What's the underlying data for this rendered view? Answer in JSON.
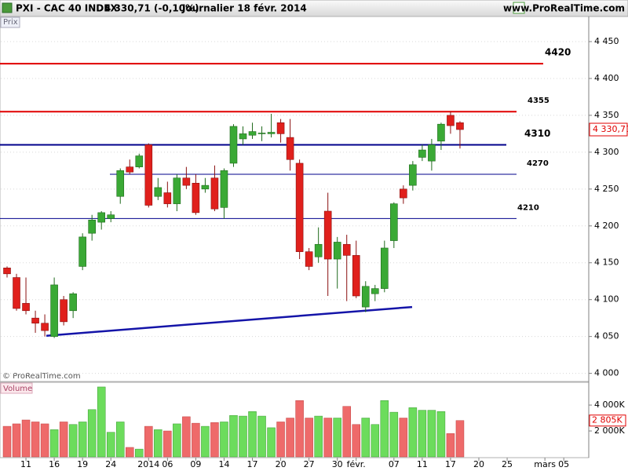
{
  "header": {
    "title": "PXI - CAC 40 INDEX",
    "quote": "4 330,71 (-0,10%)",
    "period": "Journalier 18 févr. 2014",
    "site": "www.ProRealTime.com"
  },
  "chart_data": [
    {
      "type": "candlestick",
      "panel_label": "Prix",
      "watermark": "© ProRealTime.com",
      "categories": [
        null,
        null,
        "11",
        null,
        null,
        "16",
        null,
        null,
        "19",
        null,
        null,
        "24",
        null,
        null,
        null,
        "2014",
        null,
        "06",
        null,
        null,
        "09",
        null,
        null,
        "14",
        null,
        null,
        "17",
        null,
        null,
        "20",
        null,
        null,
        "27",
        null,
        null,
        "30",
        null,
        "févr.",
        null,
        null,
        null,
        "07",
        null,
        null,
        "11",
        null,
        null,
        "17",
        null,
        null,
        "20",
        null,
        null,
        "25",
        null,
        null,
        null,
        "mars",
        null,
        "05",
        null,
        null
      ],
      "open": [
        4143,
        4130,
        4095,
        4075,
        4068,
        4050,
        4100,
        4085,
        4145,
        4190,
        4205,
        4210,
        4240,
        4280,
        4280,
        4310,
        4240,
        4245,
        4230,
        4265,
        4258,
        4250,
        4265,
        4225,
        4285,
        4318,
        4323,
        4325,
        4325,
        4340,
        4320,
        4285,
        4165,
        4158,
        4220,
        4155,
        4175,
        4160,
        4090,
        4108,
        4115,
        4180,
        4250,
        4255,
        4293,
        4288,
        4315,
        4350,
        4340,
        null,
        null,
        null,
        null,
        null,
        null,
        null,
        null,
        null,
        null,
        null,
        null,
        null
      ],
      "high": [
        4145,
        4135,
        4130,
        4085,
        4080,
        4130,
        4105,
        4110,
        4190,
        4215,
        4220,
        4220,
        4278,
        4290,
        4298,
        4312,
        4265,
        4260,
        4270,
        4280,
        4270,
        4265,
        4282,
        4278,
        4338,
        4335,
        4340,
        4335,
        4352,
        4345,
        4345,
        4290,
        4170,
        4198,
        4245,
        4185,
        4188,
        4180,
        4125,
        4120,
        4180,
        4232,
        4255,
        4288,
        4310,
        4318,
        4340,
        4355,
        4342,
        null,
        null,
        null,
        null,
        null,
        null,
        null,
        null,
        null,
        null,
        null,
        null,
        null
      ],
      "low": [
        4130,
        4085,
        4080,
        4055,
        4050,
        4048,
        4065,
        4075,
        4140,
        4180,
        4195,
        4205,
        4230,
        4270,
        4278,
        4225,
        4235,
        4225,
        4220,
        4250,
        4215,
        4245,
        4220,
        4210,
        4280,
        4310,
        4318,
        4315,
        4320,
        4313,
        4275,
        4155,
        4140,
        4150,
        4105,
        4115,
        4098,
        4102,
        4083,
        4098,
        4110,
        4170,
        4230,
        4248,
        4288,
        4275,
        4303,
        4325,
        4305,
        null,
        null,
        null,
        null,
        null,
        null,
        null,
        null,
        null,
        null,
        null,
        null,
        null
      ],
      "close": [
        4135,
        4088,
        4085,
        4068,
        4058,
        4120,
        4070,
        4108,
        4185,
        4208,
        4218,
        4215,
        4275,
        4273,
        4295,
        4228,
        4252,
        4230,
        4265,
        4255,
        4218,
        4255,
        4223,
        4275,
        4335,
        4325,
        4328,
        4326,
        4327,
        4325,
        4290,
        4165,
        4145,
        4175,
        4155,
        4178,
        4160,
        4105,
        4118,
        4115,
        4170,
        4230,
        4238,
        4283,
        4303,
        4310,
        4338,
        4336,
        4330.71,
        null,
        null,
        null,
        null,
        null,
        null,
        null,
        null,
        null,
        null,
        null,
        null,
        null
      ],
      "up_color": "#3aa935",
      "down_color": "#e0201c",
      "ylim": [
        3990,
        4483
      ],
      "yticks": [
        {
          "value": 4000,
          "label": "4 000"
        },
        {
          "value": 4050,
          "label": "4 050"
        },
        {
          "value": 4100,
          "label": "4 100"
        },
        {
          "value": 4150,
          "label": "4 150"
        },
        {
          "value": 4200,
          "label": "4 200"
        },
        {
          "value": 4250,
          "label": "4 250"
        },
        {
          "value": 4300,
          "label": "4 300"
        },
        {
          "value": 4350,
          "label": "4 350"
        },
        {
          "value": 4400,
          "label": "4 400"
        },
        {
          "value": 4450,
          "label": "4 450"
        }
      ],
      "last_price": {
        "value": 4330.71,
        "label": "4 330,71"
      },
      "levels": [
        {
          "value": 4420,
          "color": "#e00000"
        },
        {
          "value": 4355,
          "color": "#e00000"
        },
        {
          "value": 4310,
          "color": "#00008b"
        },
        {
          "value": 4270,
          "color": "#00008b"
        },
        {
          "value": 4210,
          "color": "#00008b"
        }
      ],
      "trendline": {
        "values": [
          4051,
          4090
        ],
        "color": "#1414a8"
      },
      "grid": true
    },
    {
      "type": "bar",
      "panel_label": "Volume",
      "values": [
        2360,
        2550,
        2850,
        2700,
        2550,
        2100,
        2700,
        2500,
        2700,
        3650,
        5400,
        1900,
        2700,
        730,
        600,
        2360,
        2100,
        2000,
        2550,
        3100,
        2600,
        2360,
        2650,
        2700,
        3200,
        3150,
        3500,
        3150,
        2250,
        2700,
        3000,
        4350,
        3000,
        3150,
        3000,
        3000,
        3900,
        2500,
        3000,
        2500,
        4350,
        3450,
        3000,
        3800,
        3600,
        3600,
        3500,
        1800,
        2805,
        null,
        null,
        null,
        null,
        null,
        null,
        null,
        null,
        null,
        null,
        null,
        null,
        null
      ],
      "up_color": "#6cdc5c",
      "down_color": "#ee6a6a",
      "ylim": [
        0,
        5700
      ],
      "yticks": [
        {
          "value": 2000,
          "label": "2 000K"
        },
        {
          "value": 4000,
          "label": "4 000K"
        }
      ],
      "last_value": {
        "value": 2805,
        "label": "2 805K"
      }
    }
  ]
}
